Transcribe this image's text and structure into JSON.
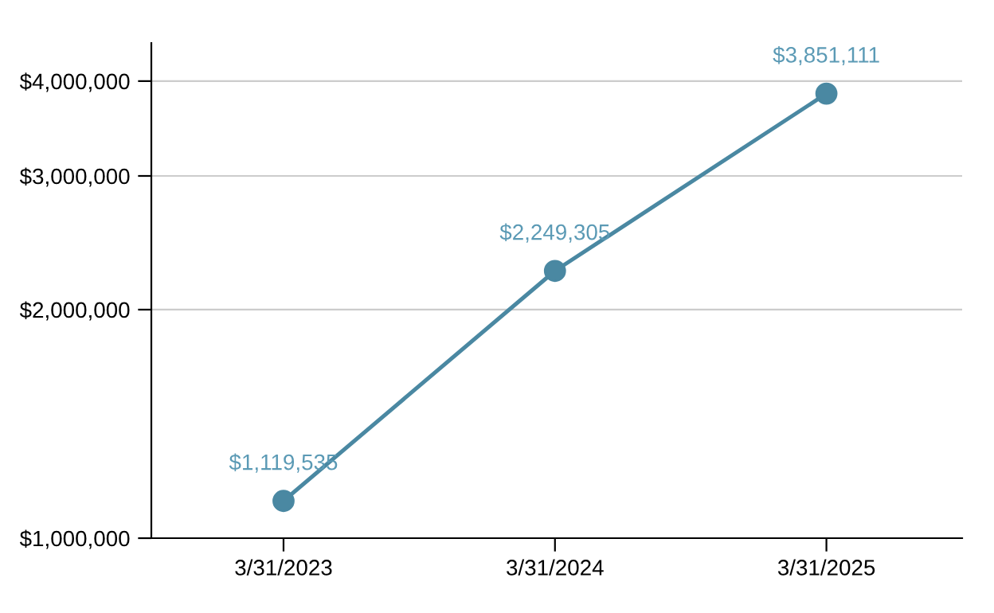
{
  "chart_data": {
    "type": "line",
    "categories": [
      "3/31/2023",
      "3/31/2024",
      "3/31/2025"
    ],
    "series": [
      {
        "color": "#4a88a2",
        "values": [
          1119535,
          2249305,
          3851111
        ],
        "value_labels": [
          "$1,119,535",
          "$2,249,305",
          "$3,851,111"
        ]
      }
    ],
    "log": "y",
    "ylim": [
      1000000,
      4490000
    ],
    "yticks": [
      {
        "value": 1000000,
        "label": "$1,000,000"
      },
      {
        "value": 2000000,
        "label": "$2,000,000"
      },
      {
        "value": 3000000,
        "label": "$3,000,000"
      },
      {
        "value": 4000000,
        "label": "$4,000,000"
      }
    ],
    "grid": "y",
    "marker": "circle",
    "line_style": "solid"
  }
}
